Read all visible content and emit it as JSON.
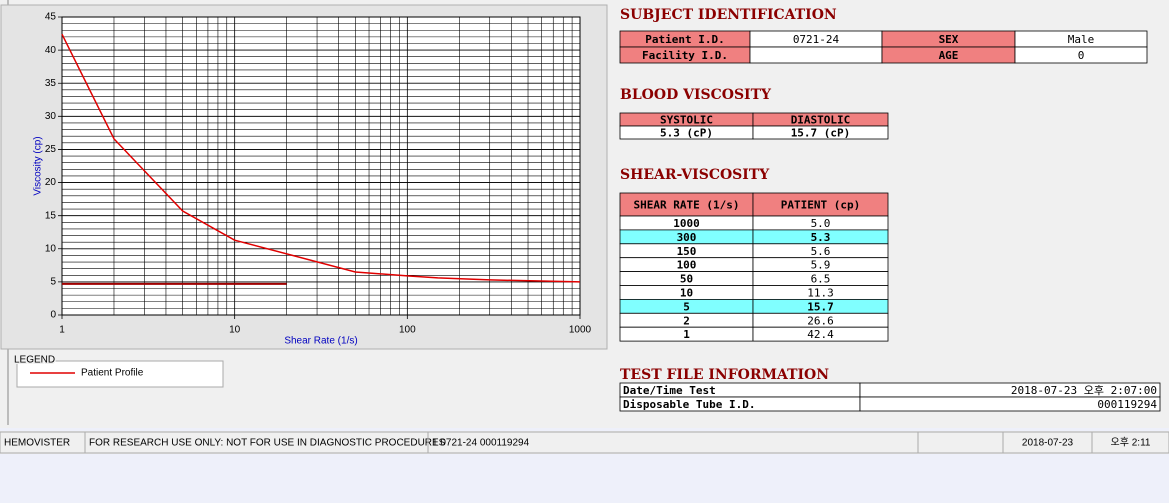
{
  "chart_data": {
    "type": "line",
    "xlabel": "Shear Rate (1/s)",
    "ylabel": "Viscosity (cp)",
    "xlog": true,
    "grid": true,
    "xlim": [
      1,
      1000
    ],
    "xticks": [
      1,
      10,
      100,
      1000
    ],
    "ylim": [
      0,
      45
    ],
    "yticks": [
      0,
      5,
      10,
      15,
      20,
      25,
      30,
      35,
      40,
      45
    ],
    "legend_title": "LEGEND",
    "series": [
      {
        "name": "Patient Profile",
        "color": "#e00000",
        "x": [
          1,
          2,
          5,
          10,
          50,
          100,
          150,
          300,
          1000
        ],
        "values": [
          42.4,
          26.6,
          15.7,
          11.3,
          6.5,
          5.9,
          5.6,
          5.3,
          5.0
        ]
      },
      {
        "color": "#a00000",
        "x": [
          1,
          20
        ],
        "values": [
          4.7,
          4.7
        ]
      }
    ]
  },
  "subject": {
    "title": "SUBJECT IDENTIFICATION",
    "fields": [
      {
        "label": "Patient I.D.",
        "value": "0721-24"
      },
      {
        "label": "SEX",
        "value": "Male"
      },
      {
        "label": "Facility I.D."
      },
      {
        "label": "AGE",
        "value": 0
      }
    ]
  },
  "blood": {
    "title": "BLOOD VISCOSITY",
    "headers": [
      "SYSTOLIC",
      "DIASTOLIC"
    ],
    "values": [
      "5.3 (cP)",
      "15.7 (cP)"
    ]
  },
  "shear": {
    "title": "SHEAR-VISCOSITY",
    "headers": [
      "SHEAR RATE (1/s)",
      "PATIENT (cp)"
    ],
    "highlight_color": "#80ffff",
    "rows": [
      {
        "rate": 1000,
        "patient": "5.0"
      },
      {
        "rate": 300,
        "patient": "5.3",
        "highlight": true
      },
      {
        "rate": 150,
        "patient": "5.6"
      },
      {
        "rate": 100,
        "patient": "5.9"
      },
      {
        "rate": 50,
        "patient": "6.5"
      },
      {
        "rate": 10,
        "patient": "11.3"
      },
      {
        "rate": 5,
        "patient": "15.7",
        "highlight": true
      },
      {
        "rate": 2,
        "patient": "26.6"
      },
      {
        "rate": 1,
        "patient": "42.4"
      }
    ]
  },
  "testfile": {
    "title": "TEST FILE INFORMATION",
    "rows": [
      {
        "label": "Date/Time Test",
        "value": "2018-07-23  오후 2:07:00"
      },
      {
        "label": "Disposable Tube I.D.",
        "value": "000119294"
      }
    ]
  },
  "status_bar": [
    "HEMOVISTER",
    "FOR RESEARCH USE ONLY: NOT FOR USE IN DIAGNOSTIC PROCEDURES",
    "1  0721-24  000119294",
    "2018-07-23",
    "오후 2:11"
  ]
}
